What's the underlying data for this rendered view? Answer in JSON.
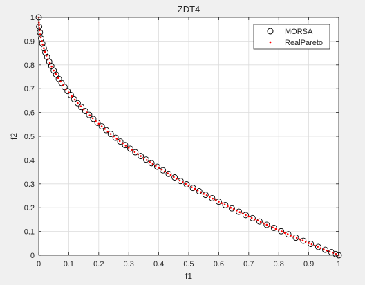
{
  "figure": {
    "background": "#f0f0f0",
    "axes_background": "#ffffff"
  },
  "chart_data": {
    "type": "scatter",
    "title": "ZDT4",
    "xlabel": "f1",
    "ylabel": "f2",
    "xlim": [
      0,
      1
    ],
    "ylim": [
      0,
      1
    ],
    "xticks": [
      "0",
      "0.1",
      "0.2",
      "0.3",
      "0.4",
      "0.5",
      "0.6",
      "0.7",
      "0.8",
      "0.9",
      "1"
    ],
    "yticks": [
      "0",
      "0.1",
      "0.2",
      "0.3",
      "0.4",
      "0.5",
      "0.6",
      "0.7",
      "0.8",
      "0.9",
      "1"
    ],
    "grid": true,
    "legend_position": "top-right",
    "front_function": "f2 = 1 - sqrt(f1)",
    "series": [
      {
        "name": "MORSA",
        "marker": "circle-open",
        "color": "#000000",
        "x": [
          0,
          0.0015,
          0.004,
          0.008,
          0.012,
          0.017,
          0.022,
          0.028,
          0.035,
          0.042,
          0.05,
          0.058,
          0.067,
          0.076,
          0.086,
          0.096,
          0.107,
          0.118,
          0.13,
          0.142,
          0.155,
          0.168,
          0.182,
          0.196,
          0.21,
          0.225,
          0.24,
          0.256,
          0.272,
          0.288,
          0.305,
          0.322,
          0.34,
          0.358,
          0.376,
          0.395,
          0.414,
          0.433,
          0.453,
          0.473,
          0.493,
          0.514,
          0.535,
          0.556,
          0.578,
          0.6,
          0.622,
          0.644,
          0.667,
          0.69,
          0.713,
          0.736,
          0.76,
          0.784,
          0.808,
          0.832,
          0.857,
          0.882,
          0.907,
          0.932,
          0.955,
          0.975,
          0.99,
          1.0
        ],
        "y": [
          1.0,
          0.961,
          0.937,
          0.911,
          0.89,
          0.87,
          0.852,
          0.833,
          0.813,
          0.795,
          0.776,
          0.759,
          0.741,
          0.724,
          0.707,
          0.69,
          0.673,
          0.656,
          0.639,
          0.623,
          0.606,
          0.59,
          0.573,
          0.557,
          0.542,
          0.526,
          0.51,
          0.494,
          0.478,
          0.463,
          0.448,
          0.433,
          0.417,
          0.402,
          0.387,
          0.372,
          0.357,
          0.342,
          0.327,
          0.312,
          0.298,
          0.283,
          0.269,
          0.254,
          0.24,
          0.225,
          0.211,
          0.197,
          0.183,
          0.169,
          0.156,
          0.142,
          0.128,
          0.115,
          0.101,
          0.088,
          0.074,
          0.061,
          0.048,
          0.035,
          0.023,
          0.013,
          0.005,
          0.0
        ]
      },
      {
        "name": "RealPareto",
        "marker": "dot",
        "color": "#ff0000",
        "x": [
          0,
          0.0005,
          0.001,
          0.002,
          0.003,
          0.005,
          0.007,
          0.01,
          0.013,
          0.017,
          0.021,
          0.026,
          0.031,
          0.037,
          0.043,
          0.05,
          0.057,
          0.065,
          0.073,
          0.082,
          0.091,
          0.1,
          0.11,
          0.12,
          0.13,
          0.14,
          0.15,
          0.16,
          0.17,
          0.18,
          0.19,
          0.2,
          0.21,
          0.22,
          0.23,
          0.24,
          0.25,
          0.26,
          0.27,
          0.28,
          0.29,
          0.3,
          0.31,
          0.32,
          0.33,
          0.34,
          0.35,
          0.36,
          0.37,
          0.38,
          0.39,
          0.4,
          0.41,
          0.42,
          0.43,
          0.44,
          0.45,
          0.46,
          0.47,
          0.48,
          0.49,
          0.5,
          0.51,
          0.52,
          0.53,
          0.54,
          0.55,
          0.56,
          0.57,
          0.58,
          0.59,
          0.6,
          0.61,
          0.62,
          0.63,
          0.64,
          0.65,
          0.66,
          0.67,
          0.68,
          0.69,
          0.7,
          0.71,
          0.72,
          0.73,
          0.74,
          0.75,
          0.76,
          0.77,
          0.78,
          0.79,
          0.8,
          0.81,
          0.82,
          0.83,
          0.84,
          0.85,
          0.86,
          0.87,
          0.88,
          0.89,
          0.9,
          0.91,
          0.92,
          0.93,
          0.94,
          0.95,
          0.96,
          0.97,
          0.98,
          0.99,
          1.0
        ],
        "y": [
          1.0,
          0.978,
          0.968,
          0.955,
          0.945,
          0.929,
          0.916,
          0.9,
          0.886,
          0.87,
          0.855,
          0.839,
          0.824,
          0.808,
          0.793,
          0.776,
          0.761,
          0.745,
          0.73,
          0.714,
          0.698,
          0.684,
          0.668,
          0.654,
          0.639,
          0.626,
          0.613,
          0.6,
          0.588,
          0.576,
          0.564,
          0.553,
          0.542,
          0.531,
          0.52,
          0.51,
          0.5,
          0.49,
          0.48,
          0.471,
          0.461,
          0.452,
          0.443,
          0.434,
          0.426,
          0.417,
          0.408,
          0.4,
          0.392,
          0.384,
          0.376,
          0.368,
          0.36,
          0.352,
          0.344,
          0.337,
          0.329,
          0.322,
          0.314,
          0.307,
          0.3,
          0.293,
          0.286,
          0.279,
          0.272,
          0.265,
          0.258,
          0.252,
          0.245,
          0.238,
          0.232,
          0.225,
          0.219,
          0.213,
          0.206,
          0.2,
          0.194,
          0.188,
          0.181,
          0.175,
          0.169,
          0.163,
          0.157,
          0.151,
          0.146,
          0.14,
          0.134,
          0.128,
          0.123,
          0.117,
          0.111,
          0.106,
          0.1,
          0.094,
          0.089,
          0.083,
          0.078,
          0.073,
          0.067,
          0.062,
          0.057,
          0.051,
          0.046,
          0.041,
          0.036,
          0.03,
          0.025,
          0.02,
          0.015,
          0.01,
          0.005,
          0.0
        ]
      }
    ]
  }
}
